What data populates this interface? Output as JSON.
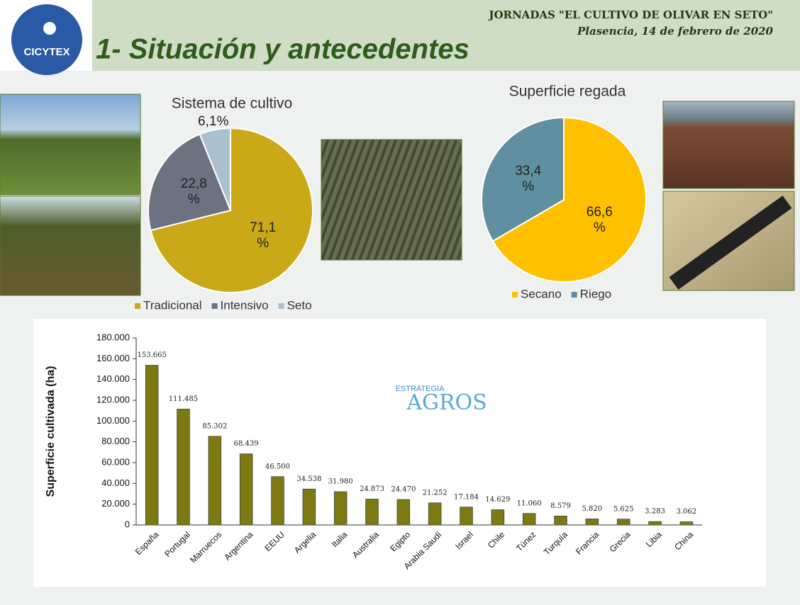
{
  "header": {
    "event": "JORNADAS \"EL CULTIVO DE OLIVAR EN SETO\"",
    "place": "Plasencia, 14 de febrero de 2020",
    "title": "1- Situación y antecedentes",
    "logo": "CICYTEX"
  },
  "chart_data": [
    {
      "type": "pie",
      "title": "Sistema de cultivo",
      "categories": [
        "Tradicional",
        "Intensivo",
        "Seto"
      ],
      "values": [
        71.1,
        22.8,
        6.1
      ],
      "value_labels": [
        "71,1 %",
        "22,8 %",
        "6,1%"
      ],
      "colors": [
        "#c9a917",
        "#6c7280",
        "#a9c1cd"
      ],
      "legend": "bottom"
    },
    {
      "type": "pie",
      "title": "Superficie regada",
      "categories": [
        "Secano",
        "Riego"
      ],
      "values": [
        66.6,
        33.4
      ],
      "value_labels": [
        "66,6 %",
        "33,4 %"
      ],
      "colors": [
        "#ffc000",
        "#5f8fa0"
      ],
      "legend": "bottom"
    },
    {
      "type": "bar",
      "ylabel": "Superficie cultivada (ha)",
      "watermark": [
        "ESTRATEGIA",
        "AGROS"
      ],
      "categories": [
        "España",
        "Portugal",
        "Marruecos",
        "Argentina",
        "EEUU",
        "Argelia",
        "Italia",
        "Australia",
        "Egipto",
        "Arabia Saudí",
        "Israel",
        "Chile",
        "Túnez",
        "Turquía",
        "Francia",
        "Grecia",
        "Libia",
        "China"
      ],
      "values": [
        153665,
        111485,
        85302,
        68439,
        46500,
        34538,
        31980,
        24873,
        24470,
        21252,
        17184,
        14629,
        11060,
        8579,
        5820,
        5625,
        3283,
        3062
      ],
      "value_labels": [
        "153.665",
        "111.485",
        "85.302",
        "68.439",
        "46.500",
        "34.538",
        "31.980",
        "24.873",
        "24.470",
        "21.252",
        "17.184",
        "14.629",
        "11.060",
        "8.579",
        "5.820",
        "5.625",
        "3.283",
        "3.062"
      ],
      "color": "#7d7a12",
      "ylim": [
        0,
        180000
      ],
      "yticks": [
        0,
        {
          "value": 20000,
          "label": "20.000"
        },
        {
          "value": 40000,
          "label": "40.000"
        },
        {
          "value": 60000,
          "label": "60.000"
        },
        {
          "value": 80000,
          "label": "80.000"
        },
        {
          "value": 100000,
          "label": "100.000"
        },
        {
          "value": 120000,
          "label": "120.000"
        },
        {
          "value": 140000,
          "label": "140.000"
        },
        {
          "value": 160000,
          "label": "160.000"
        },
        {
          "value": 180000,
          "label": "180.000"
        }
      ]
    }
  ]
}
